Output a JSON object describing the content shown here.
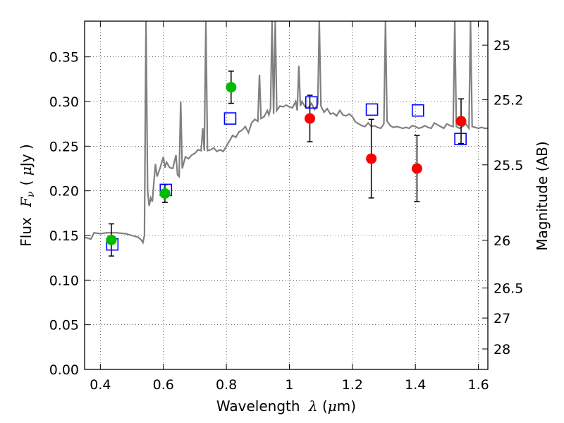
{
  "chart_data": {
    "type": "scatter",
    "xlabel": {
      "prefix": "Wavelength",
      "symbol": "λ",
      "unit_open": " (",
      "unit_mu": "μ",
      "unit_rest": "m)"
    },
    "ylabel": {
      "prefix": "Flux",
      "symbol": "F",
      "subscript": "ν",
      "unit_open": "( ",
      "unit_mu": "μ",
      "unit_rest": "Jy )"
    },
    "y2label": "Magnitude (AB)",
    "xlim": [
      0.35,
      1.63
    ],
    "ylim": [
      0.0,
      0.39
    ],
    "x_ticks": [
      0.4,
      0.6,
      0.8,
      1.0,
      1.2,
      1.4,
      1.6
    ],
    "x_tick_labels": [
      "0.4",
      "0.6",
      "0.8",
      "1",
      "1.2",
      "1.4",
      "1.6"
    ],
    "y_ticks": [
      0.0,
      0.05,
      0.1,
      0.15,
      0.2,
      0.25,
      0.3,
      0.35
    ],
    "y_tick_labels": [
      "0.00",
      "0.05",
      "0.10",
      "0.15",
      "0.20",
      "0.25",
      "0.30",
      "0.35"
    ],
    "y2_ticks": [
      {
        "mag": 25,
        "label": "25"
      },
      {
        "mag": 25.2,
        "label": "25.2"
      },
      {
        "mag": 25.5,
        "label": "25.5"
      },
      {
        "mag": 26,
        "label": "26"
      },
      {
        "mag": 26.5,
        "label": "26.5"
      },
      {
        "mag": 27,
        "label": "27"
      },
      {
        "mag": 28,
        "label": "28"
      }
    ],
    "grid": true,
    "colors": {
      "model": "#808080",
      "green": "#00bb00",
      "red": "#ff0000",
      "square": "#0000ff",
      "errorbar": "#000000"
    },
    "series": [
      {
        "kind": "line",
        "points": [
          [
            0.35,
            0.148
          ],
          [
            0.37,
            0.146
          ],
          [
            0.38,
            0.153
          ],
          [
            0.4,
            0.152
          ],
          [
            0.42,
            0.153
          ],
          [
            0.45,
            0.153
          ],
          [
            0.48,
            0.152
          ],
          [
            0.5,
            0.15
          ],
          [
            0.52,
            0.148
          ],
          [
            0.53,
            0.145
          ],
          [
            0.535,
            0.142
          ],
          [
            0.54,
            0.15
          ],
          [
            0.545,
            0.39
          ],
          [
            0.55,
            0.2
          ],
          [
            0.555,
            0.183
          ],
          [
            0.56,
            0.192
          ],
          [
            0.565,
            0.188
          ],
          [
            0.57,
            0.21
          ],
          [
            0.575,
            0.23
          ],
          [
            0.58,
            0.216
          ],
          [
            0.59,
            0.226
          ],
          [
            0.6,
            0.238
          ],
          [
            0.605,
            0.226
          ],
          [
            0.61,
            0.232
          ],
          [
            0.62,
            0.226
          ],
          [
            0.63,
            0.225
          ],
          [
            0.64,
            0.24
          ],
          [
            0.645,
            0.218
          ],
          [
            0.65,
            0.216
          ],
          [
            0.655,
            0.3
          ],
          [
            0.66,
            0.225
          ],
          [
            0.67,
            0.238
          ],
          [
            0.68,
            0.236
          ],
          [
            0.69,
            0.24
          ],
          [
            0.7,
            0.242
          ],
          [
            0.71,
            0.246
          ],
          [
            0.72,
            0.245
          ],
          [
            0.725,
            0.27
          ],
          [
            0.73,
            0.245
          ],
          [
            0.735,
            0.39
          ],
          [
            0.74,
            0.245
          ],
          [
            0.75,
            0.246
          ],
          [
            0.76,
            0.248
          ],
          [
            0.77,
            0.244
          ],
          [
            0.78,
            0.246
          ],
          [
            0.79,
            0.244
          ],
          [
            0.8,
            0.25
          ],
          [
            0.81,
            0.256
          ],
          [
            0.82,
            0.262
          ],
          [
            0.83,
            0.26
          ],
          [
            0.84,
            0.266
          ],
          [
            0.85,
            0.268
          ],
          [
            0.86,
            0.272
          ],
          [
            0.87,
            0.265
          ],
          [
            0.88,
            0.276
          ],
          [
            0.89,
            0.28
          ],
          [
            0.9,
            0.278
          ],
          [
            0.905,
            0.33
          ],
          [
            0.91,
            0.281
          ],
          [
            0.92,
            0.283
          ],
          [
            0.93,
            0.29
          ],
          [
            0.935,
            0.285
          ],
          [
            0.94,
            0.292
          ],
          [
            0.945,
            0.39
          ],
          [
            0.95,
            0.286
          ],
          [
            0.955,
            0.39
          ],
          [
            0.96,
            0.29
          ],
          [
            0.97,
            0.295
          ],
          [
            0.98,
            0.294
          ],
          [
            0.99,
            0.296
          ],
          [
            1.0,
            0.294
          ],
          [
            1.01,
            0.293
          ],
          [
            1.02,
            0.3
          ],
          [
            1.025,
            0.29
          ],
          [
            1.03,
            0.34
          ],
          [
            1.035,
            0.295
          ],
          [
            1.04,
            0.3
          ],
          [
            1.05,
            0.294
          ],
          [
            1.06,
            0.293
          ],
          [
            1.07,
            0.298
          ],
          [
            1.08,
            0.291
          ],
          [
            1.09,
            0.297
          ],
          [
            1.095,
            0.39
          ],
          [
            1.1,
            0.295
          ],
          [
            1.11,
            0.288
          ],
          [
            1.12,
            0.292
          ],
          [
            1.13,
            0.286
          ],
          [
            1.14,
            0.287
          ],
          [
            1.15,
            0.284
          ],
          [
            1.16,
            0.29
          ],
          [
            1.17,
            0.285
          ],
          [
            1.18,
            0.284
          ],
          [
            1.19,
            0.286
          ],
          [
            1.2,
            0.283
          ],
          [
            1.21,
            0.277
          ],
          [
            1.22,
            0.275
          ],
          [
            1.23,
            0.273
          ],
          [
            1.24,
            0.272
          ],
          [
            1.25,
            0.276
          ],
          [
            1.26,
            0.272
          ],
          [
            1.27,
            0.273
          ],
          [
            1.28,
            0.271
          ],
          [
            1.29,
            0.27
          ],
          [
            1.3,
            0.275
          ],
          [
            1.305,
            0.39
          ],
          [
            1.31,
            0.278
          ],
          [
            1.32,
            0.273
          ],
          [
            1.33,
            0.271
          ],
          [
            1.34,
            0.272
          ],
          [
            1.35,
            0.271
          ],
          [
            1.36,
            0.27
          ],
          [
            1.37,
            0.271
          ],
          [
            1.38,
            0.27
          ],
          [
            1.39,
            0.273
          ],
          [
            1.4,
            0.272
          ],
          [
            1.41,
            0.27
          ],
          [
            1.42,
            0.271
          ],
          [
            1.43,
            0.273
          ],
          [
            1.44,
            0.271
          ],
          [
            1.45,
            0.27
          ],
          [
            1.46,
            0.276
          ],
          [
            1.47,
            0.274
          ],
          [
            1.48,
            0.272
          ],
          [
            1.49,
            0.27
          ],
          [
            1.5,
            0.275
          ],
          [
            1.51,
            0.273
          ],
          [
            1.52,
            0.272
          ],
          [
            1.525,
            0.39
          ],
          [
            1.53,
            0.272
          ],
          [
            1.54,
            0.27
          ],
          [
            1.55,
            0.272
          ],
          [
            1.56,
            0.275
          ],
          [
            1.57,
            0.27
          ],
          [
            1.575,
            0.39
          ],
          [
            1.58,
            0.272
          ],
          [
            1.59,
            0.271
          ],
          [
            1.6,
            0.27
          ],
          [
            1.61,
            0.271
          ],
          [
            1.62,
            0.27
          ],
          [
            1.63,
            0.27
          ]
        ]
      },
      {
        "kind": "points-green",
        "points": [
          {
            "x": 0.435,
            "y": 0.145,
            "err": 0.018
          },
          {
            "x": 0.605,
            "y": 0.197,
            "err": 0.01
          },
          {
            "x": 0.815,
            "y": 0.316,
            "err": 0.018
          }
        ]
      },
      {
        "kind": "points-red",
        "points": [
          {
            "x": 1.065,
            "y": 0.281,
            "err": 0.026
          },
          {
            "x": 1.26,
            "y": 0.236,
            "err": 0.044
          },
          {
            "x": 1.405,
            "y": 0.225,
            "err": 0.037
          },
          {
            "x": 1.545,
            "y": 0.278,
            "err": 0.025
          }
        ]
      },
      {
        "kind": "squares-open",
        "points": [
          {
            "x": 0.438,
            "y": 0.14
          },
          {
            "x": 0.608,
            "y": 0.201
          },
          {
            "x": 0.812,
            "y": 0.281
          },
          {
            "x": 1.07,
            "y": 0.299
          },
          {
            "x": 1.262,
            "y": 0.291
          },
          {
            "x": 1.408,
            "y": 0.29
          },
          {
            "x": 1.543,
            "y": 0.258
          }
        ]
      }
    ]
  }
}
